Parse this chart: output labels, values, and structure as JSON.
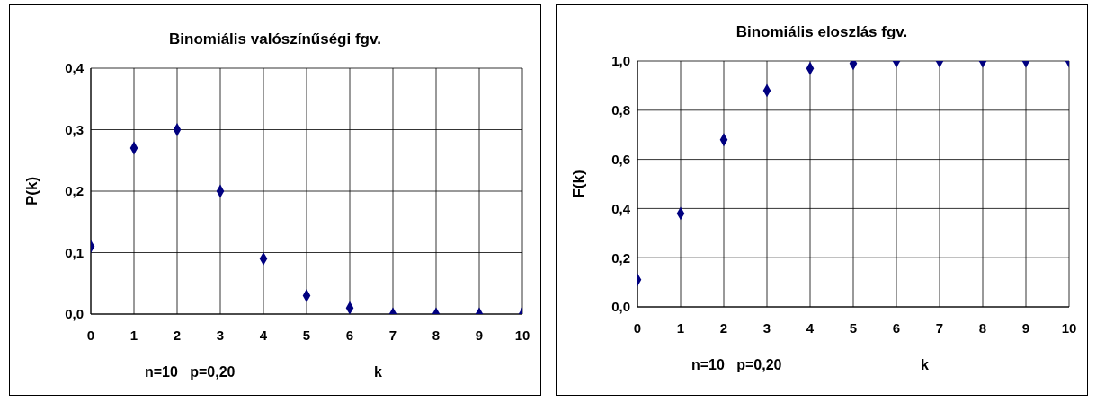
{
  "chart_data": [
    {
      "type": "scatter",
      "title": "Binomiális valószínűségi fgv.",
      "xlabel": "k",
      "ylabel": "P(k)",
      "annotations": [
        "n=10   p=0,20"
      ],
      "x": [
        0,
        1,
        2,
        3,
        4,
        5,
        6,
        7,
        8,
        9,
        10
      ],
      "series": [
        {
          "color": "#000080",
          "values": [
            0.11,
            0.27,
            0.3,
            0.2,
            0.09,
            0.03,
            0.01,
            0,
            0,
            0,
            0
          ]
        }
      ],
      "xlim": [
        0,
        10
      ],
      "xticks": [
        0,
        1,
        2,
        3,
        4,
        5,
        6,
        7,
        8,
        9,
        10
      ],
      "ylim": [
        0,
        0.4
      ],
      "yticks": [
        {
          "value": 0,
          "label": "0,0"
        },
        {
          "value": 0.1,
          "label": "0,1"
        },
        {
          "value": 0.2,
          "label": "0,2"
        },
        {
          "value": 0.3,
          "label": "0,3"
        },
        {
          "value": 0.4,
          "label": "0,4"
        }
      ],
      "grid": true,
      "legend": false,
      "marker": "diamond"
    },
    {
      "type": "scatter",
      "title": "Binomiális eloszlás fgv.",
      "xlabel": "k",
      "ylabel": "F(k)",
      "annotations": [
        "n=10   p=0,20"
      ],
      "x": [
        0,
        1,
        2,
        3,
        4,
        5,
        6,
        7,
        8,
        9,
        10
      ],
      "series": [
        {
          "color": "#000080",
          "values": [
            0.11,
            0.38,
            0.68,
            0.88,
            0.97,
            0.99,
            1.0,
            1.0,
            1.0,
            1.0,
            1.0
          ]
        }
      ],
      "xlim": [
        0,
        10
      ],
      "xticks": [
        0,
        1,
        2,
        3,
        4,
        5,
        6,
        7,
        8,
        9,
        10
      ],
      "ylim": [
        0,
        1
      ],
      "yticks": [
        {
          "value": 0,
          "label": "0,0"
        },
        {
          "value": 0.2,
          "label": "0,2"
        },
        {
          "value": 0.4,
          "label": "0,4"
        },
        {
          "value": 0.6,
          "label": "0,6"
        },
        {
          "value": 0.8,
          "label": "0,8"
        },
        {
          "value": 1,
          "label": "1,0"
        }
      ],
      "grid": true,
      "legend": false,
      "marker": "diamond"
    }
  ]
}
